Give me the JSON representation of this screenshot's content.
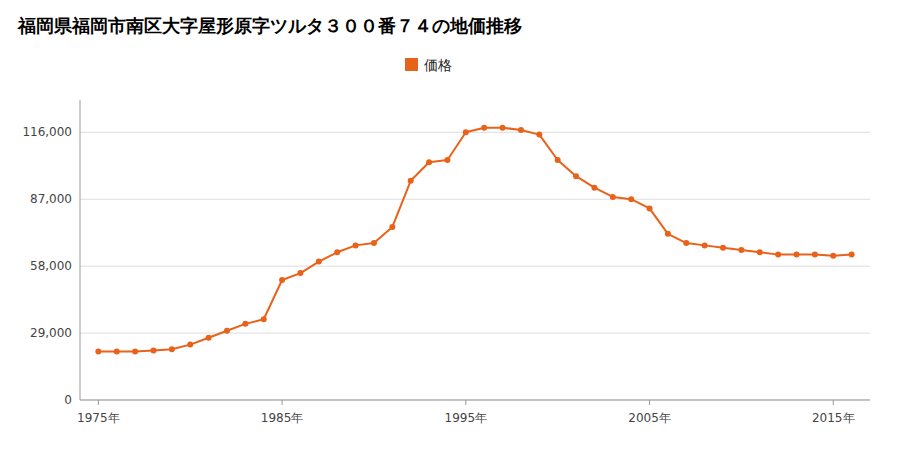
{
  "chart_data": {
    "type": "line",
    "title": "福岡県福岡市南区大字屋形原字ツルタ３００番７４の地価推移",
    "x": [
      1975,
      1976,
      1977,
      1978,
      1979,
      1980,
      1981,
      1982,
      1983,
      1984,
      1985,
      1986,
      1987,
      1988,
      1989,
      1990,
      1991,
      1992,
      1993,
      1994,
      1995,
      1996,
      1997,
      1998,
      1999,
      2000,
      2001,
      2002,
      2003,
      2004,
      2005,
      2006,
      2007,
      2008,
      2009,
      2010,
      2011,
      2012,
      2013,
      2014,
      2015,
      2016
    ],
    "series": [
      {
        "name": "価格",
        "color": "#e8621a",
        "marker": "circle",
        "values": [
          21000,
          21000,
          21000,
          21500,
          22000,
          24000,
          27000,
          30000,
          33000,
          35000,
          52000,
          55000,
          60000,
          64000,
          67000,
          68000,
          75000,
          95000,
          103000,
          104000,
          116000,
          118000,
          118000,
          117000,
          115000,
          104000,
          97000,
          92000,
          88000,
          87000,
          83000,
          72000,
          68000,
          67000,
          66000,
          65000,
          64000,
          63000,
          63000,
          63000,
          62500,
          63000
        ]
      }
    ],
    "xlim": [
      1974,
      2017
    ],
    "xticks": [
      {
        "value": 1975,
        "label": "1975年"
      },
      {
        "value": 1985,
        "label": "1985年"
      },
      {
        "value": 1995,
        "label": "1995年"
      },
      {
        "value": 2005,
        "label": "2005年"
      },
      {
        "value": 2015,
        "label": "2015年"
      }
    ],
    "ylim": [
      0,
      130000
    ],
    "yticks": [
      0,
      {
        "value": 29000,
        "label": "29,000"
      },
      {
        "value": 58000,
        "label": "58,000"
      },
      {
        "value": 87000,
        "label": "87,000"
      },
      {
        "value": 116000,
        "label": "116,000"
      }
    ],
    "grid": true,
    "legend": "top"
  }
}
